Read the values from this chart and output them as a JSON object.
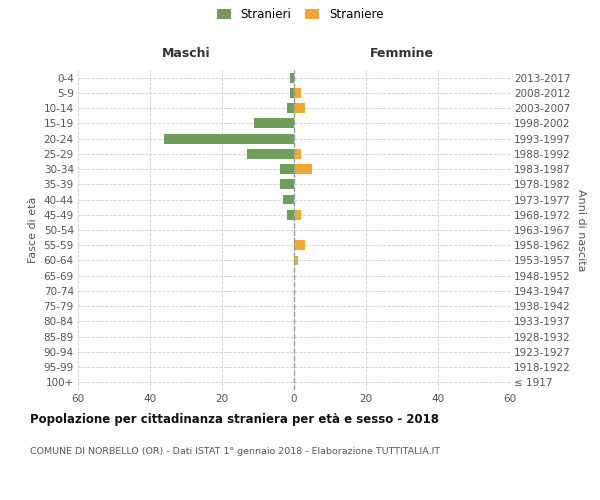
{
  "age_groups": [
    "100+",
    "95-99",
    "90-94",
    "85-89",
    "80-84",
    "75-79",
    "70-74",
    "65-69",
    "60-64",
    "55-59",
    "50-54",
    "45-49",
    "40-44",
    "35-39",
    "30-34",
    "25-29",
    "20-24",
    "15-19",
    "10-14",
    "5-9",
    "0-4"
  ],
  "birth_years": [
    "≤ 1917",
    "1918-1922",
    "1923-1927",
    "1928-1932",
    "1933-1937",
    "1938-1942",
    "1943-1947",
    "1948-1952",
    "1953-1957",
    "1958-1962",
    "1963-1967",
    "1968-1972",
    "1973-1977",
    "1978-1982",
    "1983-1987",
    "1988-1992",
    "1993-1997",
    "1998-2002",
    "2003-2007",
    "2008-2012",
    "2013-2017"
  ],
  "males": [
    0,
    0,
    0,
    0,
    0,
    0,
    0,
    0,
    0,
    0,
    0,
    2,
    3,
    4,
    4,
    13,
    36,
    11,
    2,
    1,
    1
  ],
  "females": [
    0,
    0,
    0,
    0,
    0,
    0,
    0,
    0,
    1,
    3,
    0,
    2,
    0,
    0,
    5,
    2,
    0,
    0,
    3,
    2,
    0
  ],
  "male_color": "#6d9f5b",
  "female_color": "#f0a830",
  "background_color": "#ffffff",
  "grid_color": "#cccccc",
  "xlim": 60,
  "title": "Popolazione per cittadinanza straniera per età e sesso - 2018",
  "subtitle": "COMUNE DI NORBELLO (OR) - Dati ISTAT 1° gennaio 2018 - Elaborazione TUTTITALIA.IT",
  "label_maschi": "Maschi",
  "label_femmine": "Femmine",
  "ylabel_left": "Fasce di età",
  "ylabel_right": "Anni di nascita",
  "legend_male": "Stranieri",
  "legend_female": "Straniere"
}
